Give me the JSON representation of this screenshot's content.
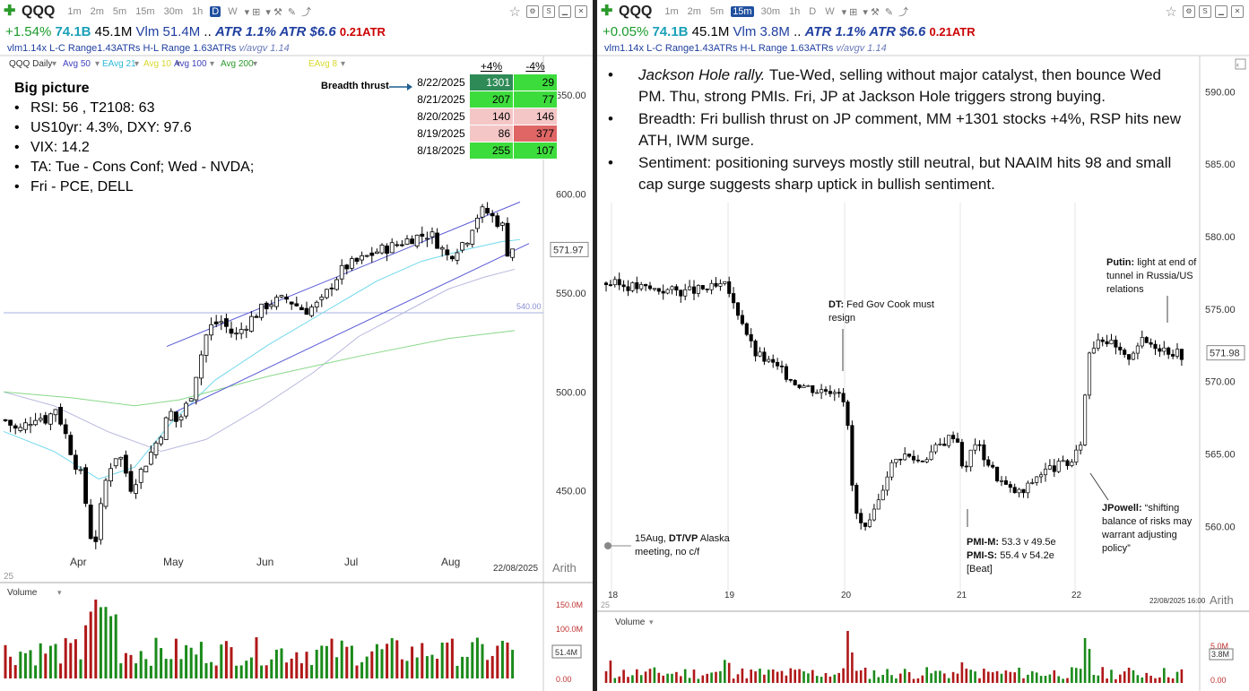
{
  "left": {
    "toolbar": {
      "symbol": "QQQ",
      "timeframes": [
        "1m",
        "2m",
        "5m",
        "15m",
        "30m",
        "1h",
        "D",
        "W"
      ],
      "selected_tf": "D"
    },
    "stats": {
      "change": "+1.54%",
      "turnover": "74.1B",
      "avg_vol": "45.1M",
      "vlm": "Vlm 51.4M",
      "dots": "..",
      "atr": "ATR 1.1% ATR $6.6",
      "atr_ratio": "0.21ATR"
    },
    "stats2": {
      "vlm": "vlm1.14x",
      "lc": "L-C Range1.43ATRs",
      "hl": "H-L Range 1.63ATRs",
      "vavg": "v/avgv 1.14"
    },
    "indicators": [
      {
        "label": "QQQ Daily",
        "color": "#333333"
      },
      {
        "label": "Avg 50",
        "color": "#3f3fbf"
      },
      {
        "label": "EAvg 21",
        "color": "#2fb8d8"
      },
      {
        "label": "Avg 10",
        "color": "#d8d82f"
      },
      {
        "label": "Avg 100",
        "color": "#3f3fbf"
      },
      {
        "label": "Avg 200",
        "color": "#2a9a2a"
      },
      {
        "label": "EAvg 8",
        "color": "#d8d82f"
      }
    ],
    "big_picture": {
      "heading": "Big picture",
      "items": [
        "RSI: 56 , T2108: 63",
        "US10yr: 4.3%, DXY: 97.6",
        "VIX: 14.2",
        "TA: Tue - Cons Conf; Wed - NVDA;",
        "Fri - PCE, DELL"
      ]
    },
    "breadth": {
      "label": "Breadth thrust",
      "headers": [
        "+4%",
        "-4%"
      ],
      "rows": [
        {
          "date": "8/22/2025",
          "up": "1301",
          "down": "29",
          "up_color": "#2e8b57",
          "down_color": "#3ddc3d"
        },
        {
          "date": "8/21/2025",
          "up": "207",
          "down": "77",
          "up_color": "#3ddc3d",
          "down_color": "#3ddc3d"
        },
        {
          "date": "8/20/2025",
          "up": "140",
          "down": "146",
          "up_color": "#f5c6c6",
          "down_color": "#f5c6c6"
        },
        {
          "date": "8/19/2025",
          "up": "86",
          "down": "377",
          "up_color": "#f5c6c6",
          "down_color": "#e06666"
        },
        {
          "date": "8/18/2025",
          "up": "255",
          "down": "107",
          "up_color": "#3ddc3d",
          "down_color": "#3ddc3d"
        }
      ]
    },
    "chart_data": {
      "type": "candlestick",
      "y_ticks": [
        "650.00",
        "600.00",
        "550.00",
        "500.00",
        "450.00"
      ],
      "ylim": [
        410,
        670
      ],
      "x_ticks": [
        "Apr",
        "May",
        "Jun",
        "Jul",
        "Aug"
      ],
      "date_label": "22/08/2025",
      "last_price": "571.97",
      "level_line": "540.00",
      "scale": "Arith",
      "volume_label": "Volume",
      "volume_ticks": [
        "150.0M",
        "100.0M",
        "0.00"
      ],
      "volume_tag": "51.4M",
      "corner_label": "25"
    }
  },
  "right": {
    "toolbar": {
      "symbol": "QQQ",
      "timeframes": [
        "1m",
        "2m",
        "5m",
        "15m",
        "30m",
        "1h",
        "D",
        "W"
      ],
      "selected_tf": "15m"
    },
    "stats": {
      "change": "+0.05%",
      "turnover": "74.1B",
      "avg_vol": "45.1M",
      "vlm": "Vlm 3.8M",
      "dots": "..",
      "atr": "ATR 1.1% ATR $6.6",
      "atr_ratio": "0.21ATR"
    },
    "stats2": {
      "vlm": "vlm1.14x",
      "lc": "L-C Range1.43ATRs",
      "hl": "H-L Range 1.63ATRs",
      "vavg": "v/avgv 1.14"
    },
    "notes": [
      {
        "em": "Jackson Hole rally.",
        "text": " Tue-Wed, selling without major catalyst, then bounce Wed PM.  Thu, strong PMIs.  Fri, JP at Jackson Hole triggers strong buying."
      },
      {
        "em": "",
        "text": "Breadth: Fri bullish thrust on JP comment, MM +1301 stocks +4%, RSP hits new ATH, IWM surge."
      },
      {
        "em": "",
        "text": "Sentiment: positioning surveys mostly still neutral, but NAAIM hits 98 and small cap surge suggests sharp uptick in bullish sentiment."
      }
    ],
    "annotations": {
      "dt": {
        "bold": "DT:",
        "text": " Fed Gov Cook must resign"
      },
      "putin": {
        "bold": "Putin:",
        "text": " light at end of tunnel in Russia/US relations"
      },
      "alaska": {
        "pre": "15Aug, ",
        "bold": "DT/VP",
        "text": " Alaska meeting, no c/f"
      },
      "pmi_m": {
        "bold": "PMI-M:",
        "text": " 53.3 v 49.5e"
      },
      "pmi_s": {
        "bold": "PMI-S:",
        "text": "  55.4 v  54.2e"
      },
      "pmi_beat": "[Beat]",
      "jpowell": {
        "bold": "JPowell:",
        "text": " “shifting balance of risks may warrant adjusting policy”"
      }
    },
    "chart_data": {
      "type": "candlestick",
      "y_ticks": [
        "590.00",
        "585.00",
        "580.00",
        "575.00",
        "570.00",
        "565.00",
        "560.00"
      ],
      "ylim": [
        555.5,
        592.5
      ],
      "x_ticks": [
        "18",
        "19",
        "20",
        "21",
        "22"
      ],
      "date_label": "22/08/2025 16:00",
      "last_price": "571.98",
      "scale": "Arith",
      "volume_label": "Volume",
      "volume_ticks": [
        "5.0M",
        "0.00"
      ],
      "volume_tag": "3.8M",
      "corner_label": "25"
    }
  }
}
